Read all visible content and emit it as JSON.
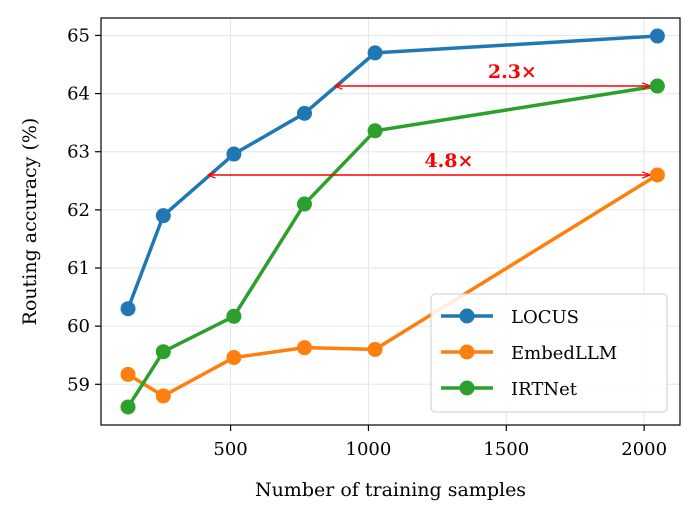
{
  "chart_data": {
    "type": "line",
    "title": "",
    "xlabel": "Number of training samples",
    "ylabel": "Routing accuracy (%)",
    "xlim": [
      30,
      2130
    ],
    "ylim": [
      58.3,
      65.3
    ],
    "xticks": [
      500,
      1000,
      1500,
      2000
    ],
    "yticks": [
      59,
      60,
      61,
      62,
      63,
      64,
      65
    ],
    "grid": true,
    "legend_position": "lower-right",
    "series": [
      {
        "name": "LOCUS",
        "color": "#1f77b4",
        "x": [
          128,
          256,
          512,
          768,
          1024,
          2048
        ],
        "y": [
          60.3,
          61.9,
          62.96,
          63.66,
          64.7,
          64.99
        ]
      },
      {
        "name": "EmbedLLM",
        "color": "#ff7f0e",
        "x": [
          128,
          256,
          512,
          768,
          1024,
          2048
        ],
        "y": [
          59.17,
          58.8,
          59.46,
          59.63,
          59.6,
          62.6
        ]
      },
      {
        "name": "IRTNet",
        "color": "#2ca02c",
        "x": [
          128,
          256,
          512,
          768,
          1024,
          2048
        ],
        "y": [
          58.61,
          59.56,
          60.17,
          62.1,
          63.36,
          64.13
        ]
      }
    ],
    "annotations": [
      {
        "text": "2.3×",
        "x_from": 2048,
        "x_to": 880,
        "y": 64.13,
        "color": "#ff0000"
      },
      {
        "text": "4.8×",
        "x_from": 2048,
        "x_to": 420,
        "y": 62.6,
        "color": "#ff0000"
      }
    ]
  }
}
